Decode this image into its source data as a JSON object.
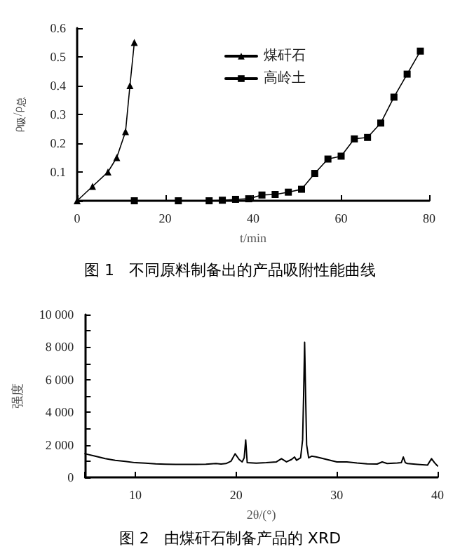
{
  "chart_data": [
    {
      "type": "line",
      "title": "图 1   不同原料制备出的产品吸附性能曲线",
      "xlabel": "t/min",
      "ylabel": "ρ$_{吸}$/ρ$_{总}$",
      "xlim": [
        0,
        80
      ],
      "xticks": [
        0,
        20,
        40,
        60,
        80
      ],
      "ylim": [
        0,
        0.6
      ],
      "yticks": [
        {
          "value": 0,
          "label": null
        },
        0.1,
        0.2,
        0.3,
        0.4,
        0.5,
        0.6
      ],
      "legend": "top right",
      "grid": false,
      "line_style": "solid",
      "series": [
        {
          "name": "煤矸石",
          "color": "#000000",
          "marker": "triangle",
          "x": [
            0,
            3.5,
            7,
            9,
            11,
            12,
            13
          ],
          "values": [
            0,
            0.05,
            0.1,
            0.15,
            0.24,
            0.4,
            0.55
          ]
        },
        {
          "name": "高岭土",
          "color": "#000000",
          "marker": "square",
          "x": [
            13,
            23,
            30,
            33,
            36,
            39,
            42,
            45,
            48,
            51,
            54,
            57,
            60,
            63,
            66,
            69,
            72,
            75,
            78
          ],
          "values": [
            0,
            0,
            0,
            0.002,
            0.005,
            0.007,
            0.02,
            0.022,
            0.03,
            0.04,
            0.095,
            0.145,
            0.155,
            0.215,
            0.22,
            0.27,
            0.36,
            0.44,
            0.52
          ]
        }
      ]
    },
    {
      "type": "line",
      "title": "图 2   由煤矸石制备产品的 XRD",
      "xlabel": "2θ/(°)",
      "ylabel": "强度",
      "xlim": [
        5,
        40
      ],
      "xticks": [
        {
          "value": 5,
          "label": null
        },
        10,
        20,
        30,
        40
      ],
      "ylim": [
        0,
        10000
      ],
      "yticks": [
        0,
        {
          "value": 1000,
          "label": null
        },
        {
          "value": 2000,
          "label": "2 000"
        },
        {
          "value": 3000,
          "label": null
        },
        {
          "value": 4000,
          "label": "4 000"
        },
        {
          "value": 5000,
          "label": null
        },
        {
          "value": 6000,
          "label": "6 000"
        },
        {
          "value": 7000,
          "label": null
        },
        {
          "value": 8000,
          "label": "8 000"
        },
        {
          "value": 9000,
          "label": null
        },
        {
          "value": 10000,
          "label": "10 000"
        }
      ],
      "legend": false,
      "grid": false,
      "marker": "none",
      "line_style": "solid",
      "series": [
        {
          "color": "#000000",
          "x": [
            5,
            6,
            7,
            8,
            9,
            10,
            11,
            12,
            13,
            14,
            15,
            16,
            17,
            18,
            18.5,
            19,
            19.5,
            19.9,
            20.3,
            20.6,
            20.8,
            20.95,
            21.1,
            22,
            23,
            24,
            24.5,
            25,
            25.5,
            25.8,
            26,
            26.4,
            26.6,
            26.7,
            26.8,
            26.9,
            27,
            27.2,
            27.5,
            28,
            29,
            30,
            31,
            32,
            33,
            34,
            34.5,
            35,
            36,
            36.4,
            36.6,
            36.8,
            37,
            38,
            39,
            39.4,
            39.7,
            40
          ],
          "values": [
            1450,
            1300,
            1150,
            1050,
            980,
            900,
            870,
            830,
            810,
            800,
            800,
            800,
            810,
            850,
            820,
            850,
            1000,
            1450,
            1100,
            950,
            1200,
            2300,
            900,
            870,
            900,
            950,
            1150,
            950,
            1100,
            1250,
            1050,
            1200,
            2300,
            5000,
            8300,
            5000,
            2000,
            1200,
            1300,
            1250,
            1100,
            950,
            950,
            880,
            830,
            820,
            950,
            850,
            880,
            900,
            1250,
            900,
            850,
            800,
            750,
            1150,
            900,
            700
          ]
        }
      ]
    }
  ]
}
